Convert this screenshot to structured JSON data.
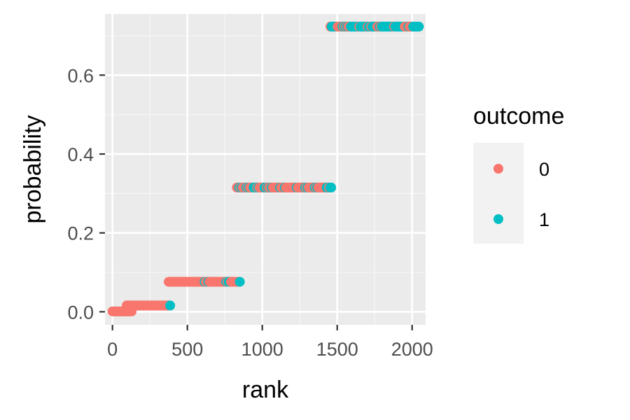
{
  "chart_data": {
    "type": "scatter",
    "xlabel": "rank",
    "ylabel": "probability",
    "xlim": [
      -50,
      2090
    ],
    "ylim": [
      -0.033,
      0.755
    ],
    "x_ticks": [
      0,
      500,
      1000,
      1500,
      2000
    ],
    "x_tick_labels": [
      "0",
      "500",
      "1000",
      "1500",
      "2000"
    ],
    "y_ticks": [
      0.0,
      0.2,
      0.4,
      0.6
    ],
    "y_tick_labels": [
      "0.0",
      "0.2",
      "0.4",
      "0.6"
    ],
    "grid": true,
    "legend": {
      "title": "outcome",
      "placement": "right",
      "entries": [
        {
          "label": "0",
          "color": "#F8766D"
        },
        {
          "label": "1",
          "color": "#00BFC4"
        }
      ]
    },
    "groups": [
      {
        "probability": 0.001,
        "rank_start": 0,
        "rank_end": 130,
        "share_outcome_1": 0.0
      },
      {
        "probability": 0.016,
        "rank_start": 95,
        "rank_end": 385,
        "share_outcome_1": 0.05
      },
      {
        "probability": 0.076,
        "rank_start": 375,
        "rank_end": 850,
        "share_outcome_1": 0.1
      },
      {
        "probability": 0.315,
        "rank_start": 830,
        "rank_end": 1460,
        "share_outcome_1": 0.3
      },
      {
        "probability": 0.723,
        "rank_start": 1455,
        "rank_end": 2045,
        "share_outcome_1": 0.72
      }
    ]
  }
}
